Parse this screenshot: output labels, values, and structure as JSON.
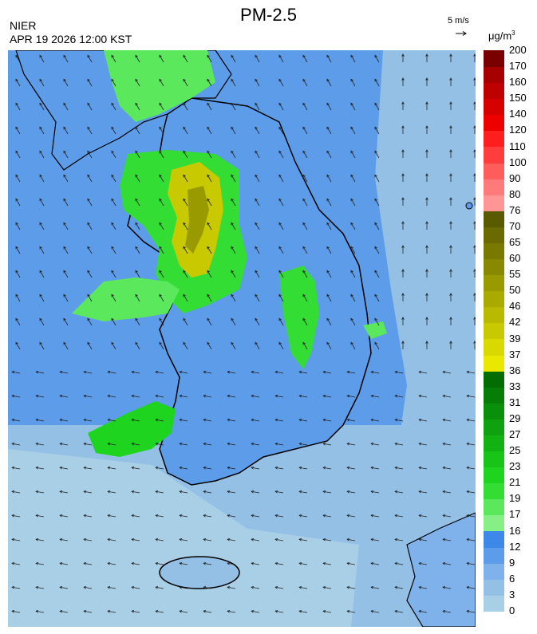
{
  "header": {
    "title": "PM-2.5",
    "agency": "NIER",
    "timestamp": "APR 19 2026 12:00 KST",
    "wind_scale_label": "5 m/s",
    "unit_base": "μg/m",
    "unit_exp": "3"
  },
  "legend": {
    "levels": [
      "0",
      "3",
      "6",
      "9",
      "12",
      "16",
      "17",
      "19",
      "21",
      "23",
      "25",
      "27",
      "29",
      "31",
      "33",
      "36",
      "37",
      "39",
      "42",
      "46",
      "50",
      "55",
      "60",
      "65",
      "70",
      "76",
      "80",
      "90",
      "100",
      "110",
      "120",
      "140",
      "150",
      "160",
      "170",
      "200"
    ],
    "colors": [
      "#a9cfe6",
      "#94c0e6",
      "#7fb1ea",
      "#5d9ce8",
      "#3d88e8",
      "#86f086",
      "#5ce85c",
      "#33dd33",
      "#1ed41e",
      "#18c418",
      "#13b213",
      "#0fa10f",
      "#0a8f0a",
      "#067d06",
      "#036c03",
      "#e9e900",
      "#d9d900",
      "#c9c900",
      "#b9b900",
      "#a9a900",
      "#999900",
      "#898900",
      "#797900",
      "#6a6a00",
      "#5a5a00",
      "#ff9595",
      "#ff7a7a",
      "#ff5c5c",
      "#ff3d3d",
      "#ff1e1e",
      "#ee0000",
      "#d60000",
      "#be0000",
      "#a60000",
      "#7a0000"
    ]
  },
  "map": {
    "background": "#94c0e6",
    "land_color": "#5d9ce8",
    "wind_color": "#222222",
    "border_color": "#000000"
  }
}
